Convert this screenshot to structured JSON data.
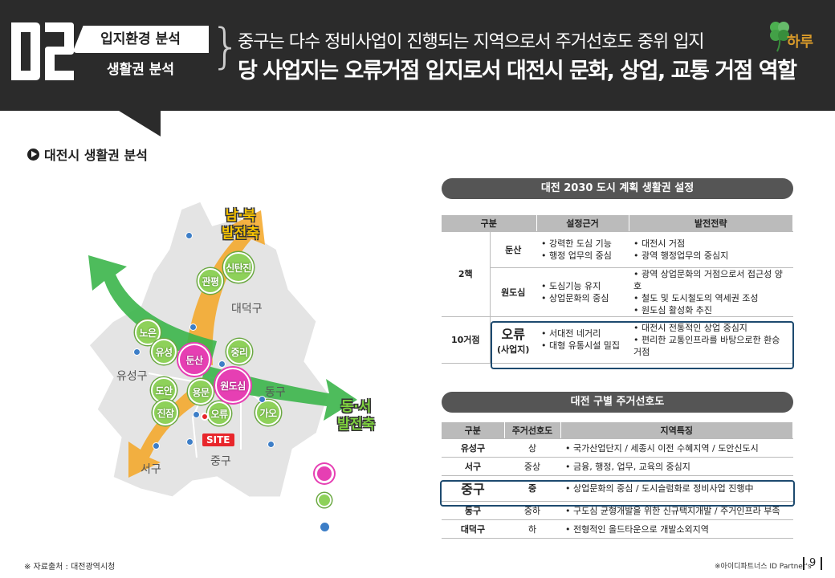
{
  "header": {
    "section_number": "02",
    "category": "입지환경 분석",
    "subcategory": "생활권 분석",
    "headline_1": "중구는 다수 정비사업이 진행되는 지역으로서 주거선호도 중위 입지",
    "headline_2": "당 사업지는 오류거점 입지로서 대전시 문화, 상업, 교통 거점 역할",
    "logo_text": "하루"
  },
  "section_title": "대전시 생활권 분석",
  "map": {
    "districts": [
      "대덕구",
      "유성구",
      "동구",
      "서구",
      "중구"
    ],
    "axis_ns": [
      "남·북",
      "발전축"
    ],
    "axis_ew": [
      "동·서",
      "발전축"
    ],
    "green_nodes": [
      "신탄진",
      "관평",
      "노은",
      "유성",
      "중리",
      "도안",
      "용문",
      "오류",
      "진잠",
      "가오"
    ],
    "pink_nodes": [
      "둔산",
      "원도심"
    ],
    "site_label": "SITE"
  },
  "table1": {
    "title": "대전 2030 도시 계획 생활권 설정",
    "headers": [
      "구분",
      "설정근거",
      "발전전략"
    ],
    "group_2": "2핵",
    "group_10": "10거점",
    "rows": [
      {
        "name": "둔산",
        "basis": [
          "강력한 도심 기능",
          "행정 업무의 중심"
        ],
        "strategy": [
          "대전시 거점",
          "광역 행정업무의 중심지"
        ]
      },
      {
        "name": "원도심",
        "basis": [
          "도심기능 유지",
          "상업문화의 중심"
        ],
        "strategy": [
          "광역 상업문화의 거점으로서 접근성 양호",
          "철도 및 도시철도의 역세권 조성",
          "원도심 활성화 추진"
        ]
      },
      {
        "name": "오류",
        "name_sub": "(사업지)",
        "basis": [
          "서대전 네거리",
          "대형 유통시설 밀집"
        ],
        "strategy": [
          "대전시 전통적인 상업 중심지",
          "편리한 교통인프라를 바탕으로한 환승거점"
        ]
      }
    ]
  },
  "table2": {
    "title": "대전 구별 주거선호도",
    "headers": [
      "구분",
      "주거선호도",
      "지역특징"
    ],
    "rows": [
      {
        "name": "유성구",
        "pref": "상",
        "feature": "국가산업단지 / 세종시 이전 수혜지역 / 도안신도시"
      },
      {
        "name": "서구",
        "pref": "중상",
        "feature": "금융, 행정, 업무, 교육의 중심지"
      },
      {
        "name": "중구",
        "pref": "중",
        "feature": "상업문화의 중심 / 도시슬럼화로 정비사업 진행中"
      },
      {
        "name": "동구",
        "pref": "중하",
        "feature": "구도심 균형개발을 위한 신규택지개발 / 주거인프라 부족"
      },
      {
        "name": "대덕구",
        "pref": "하",
        "feature": "전형적인 올드타운으로 개발소외지역"
      }
    ]
  },
  "footer": {
    "source": "※ 자료출처 : 대전광역시청",
    "credit": "※아이디파트너스 ID Partner's",
    "page": "9"
  },
  "colors": {
    "header_bg": "#2b2b2b",
    "highlight": "#1d4a6f",
    "node_green": "#8ed15a",
    "node_pink": "#e63fb3",
    "axis_yellow": "#f7c300",
    "axis_green": "#7fd33f"
  }
}
